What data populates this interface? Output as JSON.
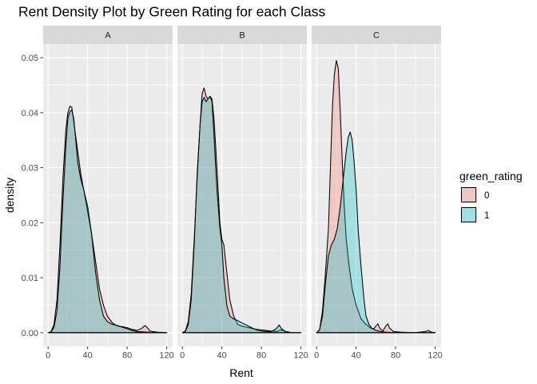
{
  "chart_data": {
    "type": "area",
    "chart_kind": "faceted density plot",
    "title": "Rent Density Plot by Green Rating for each Class",
    "xlabel": "Rent",
    "ylabel": "density",
    "xlim": [
      -5,
      126
    ],
    "ylim": [
      -0.0025,
      0.0525
    ],
    "x_ticks": [
      0,
      40,
      80,
      120
    ],
    "y_ticks": [
      0.0,
      0.01,
      0.02,
      0.03,
      0.04,
      0.05
    ],
    "y_tick_labels": [
      "0.00",
      "0.01",
      "0.02",
      "0.03",
      "0.04",
      "0.05"
    ],
    "grid": true,
    "legend": {
      "title": "green_rating",
      "position": "right",
      "entries": [
        {
          "label": "0",
          "color": "#F8766D"
        },
        {
          "label": "1",
          "color": "#00BFC4"
        }
      ]
    },
    "colors": {
      "panel_bg": "#EBEBEB",
      "strip_bg": "#D9D9D9",
      "grid": "#FFFFFF",
      "series_0": "#F8766D",
      "series_1": "#00BFC4"
    },
    "facets": [
      {
        "label": "A",
        "series": [
          {
            "name": "0",
            "points": [
              [
                0,
                0
              ],
              [
                3,
                0.0002
              ],
              [
                6,
                0.0015
              ],
              [
                9,
                0.006
              ],
              [
                12,
                0.016
              ],
              [
                15,
                0.028
              ],
              [
                18,
                0.037
              ],
              [
                20,
                0.04
              ],
              [
                22,
                0.0412
              ],
              [
                24,
                0.041
              ],
              [
                27,
                0.037
              ],
              [
                30,
                0.033
              ],
              [
                33,
                0.029
              ],
              [
                36,
                0.026
              ],
              [
                40,
                0.022
              ],
              [
                44,
                0.018
              ],
              [
                48,
                0.013
              ],
              [
                52,
                0.008
              ],
              [
                56,
                0.005
              ],
              [
                60,
                0.003
              ],
              [
                65,
                0.0018
              ],
              [
                70,
                0.0012
              ],
              [
                75,
                0.0011
              ],
              [
                80,
                0.0009
              ],
              [
                85,
                0.0006
              ],
              [
                90,
                0.0004
              ],
              [
                95,
                0.0008
              ],
              [
                98,
                0.0013
              ],
              [
                100,
                0.001
              ],
              [
                103,
                0.0003
              ],
              [
                110,
                0.0001
              ],
              [
                120,
                0.0
              ]
            ]
          },
          {
            "name": "1",
            "points": [
              [
                0,
                0
              ],
              [
                3,
                0.0001
              ],
              [
                6,
                0.001
              ],
              [
                9,
                0.004
              ],
              [
                12,
                0.012
              ],
              [
                15,
                0.024
              ],
              [
                18,
                0.034
              ],
              [
                20,
                0.039
              ],
              [
                22,
                0.0402
              ],
              [
                24,
                0.0405
              ],
              [
                26,
                0.039
              ],
              [
                28,
                0.035
              ],
              [
                30,
                0.031
              ],
              [
                33,
                0.028
              ],
              [
                36,
                0.026
              ],
              [
                40,
                0.023
              ],
              [
                44,
                0.018
              ],
              [
                48,
                0.011
              ],
              [
                52,
                0.006
              ],
              [
                56,
                0.003
              ],
              [
                60,
                0.002
              ],
              [
                65,
                0.0015
              ],
              [
                70,
                0.0013
              ],
              [
                75,
                0.001
              ],
              [
                80,
                0.0007
              ],
              [
                85,
                0.0004
              ],
              [
                90,
                0.0002
              ],
              [
                100,
                0.0001
              ],
              [
                110,
                0.0
              ],
              [
                120,
                0.0
              ]
            ]
          }
        ]
      },
      {
        "label": "B",
        "series": [
          {
            "name": "0",
            "points": [
              [
                0,
                0
              ],
              [
                3,
                0.0003
              ],
              [
                6,
                0.002
              ],
              [
                9,
                0.007
              ],
              [
                12,
                0.017
              ],
              [
                15,
                0.028
              ],
              [
                18,
                0.038
              ],
              [
                20,
                0.0435
              ],
              [
                22,
                0.0445
              ],
              [
                24,
                0.043
              ],
              [
                26,
                0.0425
              ],
              [
                28,
                0.043
              ],
              [
                30,
                0.0425
              ],
              [
                32,
                0.039
              ],
              [
                35,
                0.03
              ],
              [
                38,
                0.02
              ],
              [
                40,
                0.017
              ],
              [
                42,
                0.016
              ],
              [
                45,
                0.011
              ],
              [
                48,
                0.006
              ],
              [
                52,
                0.003
              ],
              [
                56,
                0.0015
              ],
              [
                60,
                0.0012
              ],
              [
                65,
                0.001
              ],
              [
                70,
                0.0008
              ],
              [
                75,
                0.0006
              ],
              [
                80,
                0.0005
              ],
              [
                85,
                0.0004
              ],
              [
                90,
                0.0003
              ],
              [
                95,
                0.0002
              ],
              [
                100,
                0.0005
              ],
              [
                105,
                0.0002
              ],
              [
                110,
                0.0
              ],
              [
                120,
                0.0
              ]
            ]
          },
          {
            "name": "1",
            "points": [
              [
                0,
                0
              ],
              [
                3,
                0.0002
              ],
              [
                6,
                0.0015
              ],
              [
                9,
                0.006
              ],
              [
                12,
                0.016
              ],
              [
                15,
                0.029
              ],
              [
                18,
                0.038
              ],
              [
                20,
                0.042
              ],
              [
                22,
                0.0428
              ],
              [
                24,
                0.042
              ],
              [
                26,
                0.0425
              ],
              [
                28,
                0.043
              ],
              [
                30,
                0.042
              ],
              [
                32,
                0.036
              ],
              [
                35,
                0.026
              ],
              [
                38,
                0.019
              ],
              [
                40,
                0.016
              ],
              [
                42,
                0.01
              ],
              [
                45,
                0.005
              ],
              [
                48,
                0.003
              ],
              [
                52,
                0.0025
              ],
              [
                56,
                0.0022
              ],
              [
                60,
                0.0018
              ],
              [
                65,
                0.0014
              ],
              [
                70,
                0.0009
              ],
              [
                75,
                0.0005
              ],
              [
                80,
                0.0003
              ],
              [
                85,
                0.0002
              ],
              [
                90,
                0.0002
              ],
              [
                95,
                0.0007
              ],
              [
                98,
                0.0014
              ],
              [
                100,
                0.0008
              ],
              [
                104,
                0.0002
              ],
              [
                110,
                0.0
              ],
              [
                120,
                0.0
              ]
            ]
          }
        ]
      },
      {
        "label": "C",
        "series": [
          {
            "name": "0",
            "points": [
              [
                0,
                0
              ],
              [
                3,
                0.0005
              ],
              [
                6,
                0.004
              ],
              [
                9,
                0.011
              ],
              [
                12,
                0.019
              ],
              [
                14,
                0.03
              ],
              [
                16,
                0.041
              ],
              [
                18,
                0.047
              ],
              [
                20,
                0.0495
              ],
              [
                22,
                0.048
              ],
              [
                24,
                0.04
              ],
              [
                26,
                0.031
              ],
              [
                28,
                0.023
              ],
              [
                30,
                0.017
              ],
              [
                33,
                0.012
              ],
              [
                36,
                0.008
              ],
              [
                40,
                0.005
              ],
              [
                45,
                0.0025
              ],
              [
                50,
                0.0015
              ],
              [
                55,
                0.0008
              ],
              [
                58,
                0.0007
              ],
              [
                60,
                0.0012
              ],
              [
                62,
                0.0016
              ],
              [
                64,
                0.0008
              ],
              [
                67,
                0.0003
              ],
              [
                70,
                0.0012
              ],
              [
                72,
                0.0016
              ],
              [
                74,
                0.0008
              ],
              [
                78,
                0.0002
              ],
              [
                85,
                0.0001
              ],
              [
                100,
                0.0
              ],
              [
                110,
                0.0002
              ],
              [
                113,
                0.0004
              ],
              [
                116,
                0.0001
              ],
              [
                120,
                0.0
              ]
            ]
          },
          {
            "name": "1",
            "points": [
              [
                0,
                0
              ],
              [
                3,
                0.0005
              ],
              [
                6,
                0.003
              ],
              [
                9,
                0.009
              ],
              [
                12,
                0.014
              ],
              [
                15,
                0.016
              ],
              [
                18,
                0.017
              ],
              [
                21,
                0.019
              ],
              [
                24,
                0.023
              ],
              [
                27,
                0.028
              ],
              [
                30,
                0.033
              ],
              [
                32,
                0.0355
              ],
              [
                34,
                0.0365
              ],
              [
                36,
                0.035
              ],
              [
                38,
                0.031
              ],
              [
                40,
                0.026
              ],
              [
                42,
                0.019
              ],
              [
                45,
                0.012
              ],
              [
                48,
                0.006
              ],
              [
                50,
                0.003
              ],
              [
                53,
                0.0015
              ],
              [
                56,
                0.0008
              ],
              [
                60,
                0.0004
              ],
              [
                65,
                0.0002
              ],
              [
                70,
                0.0001
              ],
              [
                80,
                0.0
              ],
              [
                120,
                0.0
              ]
            ]
          }
        ]
      }
    ]
  }
}
